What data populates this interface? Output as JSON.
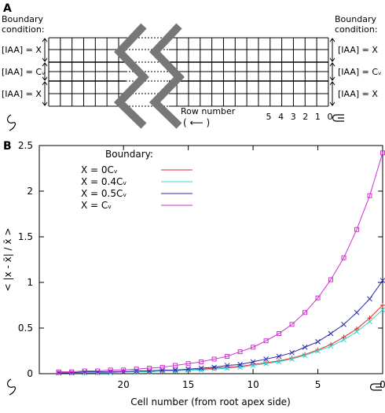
{
  "diagram": {
    "label": "A",
    "heading_lines": [
      "Boundary",
      "condition:"
    ],
    "left_conditions": [
      "[IAA] = X",
      "[IAA] = Cᵥ",
      "[IAA] = X"
    ],
    "right_heading_lines": [
      "Boundary",
      "condition:"
    ],
    "right_conditions": [
      "[IAA] = X",
      "[IAA] = Cᵥ",
      "[IAA] = X"
    ],
    "row_number_label": "Row number",
    "direction": "( ⟵ )",
    "row_numbers": [
      5,
      4,
      3,
      2,
      1,
      0
    ]
  },
  "chart_data": {
    "type": "line",
    "label": "B",
    "xlabel": "Cell number (from root apex side)",
    "ylabel": "< |x - x̄| / x̄ >",
    "legend_title": "Boundary:",
    "x": [
      0,
      1,
      2,
      3,
      4,
      5,
      6,
      7,
      8,
      9,
      10,
      11,
      12,
      13,
      14,
      15,
      16,
      17,
      18,
      19,
      20,
      21,
      22,
      23,
      24,
      25
    ],
    "series": [
      {
        "name": "X = 0Cᵥ",
        "color": "#e0302a",
        "marker": "plus",
        "values": [
          0.75,
          0.61,
          0.49,
          0.4,
          0.32,
          0.26,
          0.21,
          0.17,
          0.14,
          0.12,
          0.1,
          0.08,
          0.07,
          0.06,
          0.05,
          0.04,
          0.03,
          0.03,
          0.02,
          0.02,
          0.02,
          0.02,
          0.01,
          0.01,
          0.01,
          0.01
        ]
      },
      {
        "name": "X = 0.4Cᵥ",
        "color": "#30d8d0",
        "marker": "x",
        "values": [
          0.7,
          0.57,
          0.46,
          0.37,
          0.3,
          0.25,
          0.2,
          0.16,
          0.13,
          0.11,
          0.09,
          0.07,
          0.06,
          0.05,
          0.04,
          0.04,
          0.03,
          0.03,
          0.02,
          0.02,
          0.02,
          0.01,
          0.01,
          0.01,
          0.01,
          0.01
        ]
      },
      {
        "name": "X = 0.5Cᵥ",
        "color": "#2a2ab0",
        "marker": "x",
        "values": [
          1.02,
          0.82,
          0.67,
          0.54,
          0.44,
          0.35,
          0.29,
          0.23,
          0.19,
          0.16,
          0.13,
          0.1,
          0.09,
          0.07,
          0.06,
          0.05,
          0.04,
          0.04,
          0.03,
          0.03,
          0.02,
          0.02,
          0.02,
          0.02,
          0.01,
          0.01
        ]
      },
      {
        "name": "X = Cᵥ",
        "color": "#d030d0",
        "marker": "square",
        "values": [
          2.42,
          1.95,
          1.58,
          1.27,
          1.03,
          0.83,
          0.67,
          0.54,
          0.44,
          0.36,
          0.29,
          0.24,
          0.19,
          0.16,
          0.13,
          0.11,
          0.09,
          0.07,
          0.06,
          0.05,
          0.04,
          0.04,
          0.03,
          0.03,
          0.02,
          0.02
        ]
      }
    ],
    "xlim": [
      26.5,
      0
    ],
    "xticks": [
      20,
      15,
      10,
      5,
      0
    ],
    "ylim": [
      0,
      2.5
    ],
    "yticks": [
      0,
      0.5,
      1,
      1.5,
      2,
      2.5
    ],
    "grid": false
  }
}
